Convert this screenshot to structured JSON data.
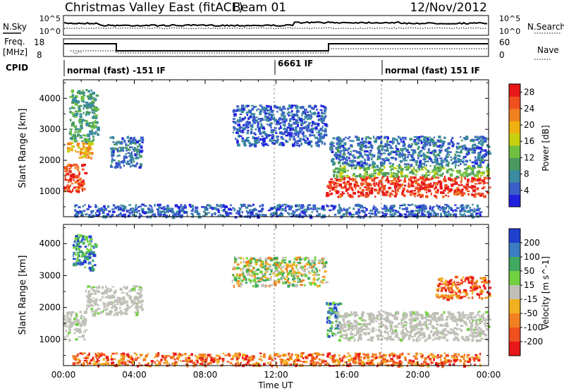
{
  "header": {
    "radar": "Christmas Valley East (fitACF)",
    "beam": "Beam 01",
    "date": "12/Nov/2012"
  },
  "noise_panel": {
    "left_label": "N.Sky",
    "right_label": "N.Search",
    "left_ticks": [
      "10^5",
      "10^0"
    ],
    "right_ticks": [
      "10^5",
      "10^0"
    ]
  },
  "freq_panel": {
    "left_label_1": "Freq.",
    "left_label_2": "[MHz]",
    "right_label": "Nave",
    "left_ticks": [
      "18",
      "8"
    ],
    "right_ticks": [
      "60",
      "0"
    ]
  },
  "cpid_panel": {
    "label": "CPID",
    "segments": [
      "normal (fast) -151 IF",
      "6661 IF",
      "normal (fast) 151 IF"
    ]
  },
  "time_axis": {
    "title": "Time UT",
    "ticks": [
      "00:00",
      "04:00",
      "08:00",
      "12:00",
      "16:00",
      "20:00",
      "00:00"
    ]
  },
  "chart_data": [
    {
      "type": "heatmap",
      "title": "Power",
      "xlabel": "Time UT",
      "ylabel": "Slant Range [km]",
      "x_ticks": [
        "00:00",
        "04:00",
        "08:00",
        "12:00",
        "16:00",
        "20:00",
        "00:00"
      ],
      "y_ticks": [
        1000,
        2000,
        3000,
        4000
      ],
      "xlim_hours": [
        0,
        24
      ],
      "ylim_km": [
        180,
        4600
      ],
      "colorbar_label": "Power [dB]",
      "colorbar_ticks": [
        4,
        8,
        12,
        16,
        20,
        24,
        28
      ],
      "colorbar_range": [
        0,
        30
      ],
      "colorbar_colors": [
        "#2020e0",
        "#3a5ec8",
        "#3a8aa0",
        "#4a9a60",
        "#70c040",
        "#c8d010",
        "#f0b010",
        "#f08020",
        "#f05020",
        "#e81818"
      ],
      "regions": [
        {
          "t0": 0.0,
          "t1": 1.2,
          "r0": 1000,
          "r1": 1900,
          "level": 26
        },
        {
          "t0": 0.2,
          "t1": 1.6,
          "r0": 2100,
          "r1": 2600,
          "level": 20
        },
        {
          "t0": 0.3,
          "t1": 1.9,
          "r0": 2600,
          "r1": 4300,
          "level": 10
        },
        {
          "t0": 2.6,
          "t1": 4.4,
          "r0": 1800,
          "r1": 2800,
          "level": 6
        },
        {
          "t0": 9.5,
          "t1": 14.8,
          "r0": 2500,
          "r1": 3800,
          "level": 5
        },
        {
          "t0": 14.8,
          "t1": 24.0,
          "r0": 850,
          "r1": 1500,
          "level": 27
        },
        {
          "t0": 15.2,
          "t1": 24.0,
          "r0": 1500,
          "r1": 1850,
          "level": 13
        },
        {
          "t0": 15.0,
          "t1": 24.0,
          "r0": 1850,
          "r1": 2800,
          "level": 6
        },
        {
          "t0": 0.5,
          "t1": 23.5,
          "r0": 200,
          "r1": 600,
          "level": 5
        }
      ]
    },
    {
      "type": "heatmap",
      "title": "Velocity",
      "xlabel": "Time UT",
      "ylabel": "Slant Range [km]",
      "x_ticks": [
        "00:00",
        "04:00",
        "08:00",
        "12:00",
        "16:00",
        "20:00",
        "00:00"
      ],
      "y_ticks": [
        1000,
        2000,
        3000,
        4000
      ],
      "xlim_hours": [
        0,
        24
      ],
      "ylim_km": [
        180,
        4600
      ],
      "colorbar_label": "Velocity [m s^-1]",
      "colorbar_ticks": [
        "200",
        "100",
        "50",
        "15",
        "-15",
        "-50",
        "-100",
        "-200"
      ],
      "colorbar_colors": [
        "#2040d0",
        "#3c7cc0",
        "#40a860",
        "#70d040",
        "#c0c0b8",
        "#f0b020",
        "#f08020",
        "#f05020",
        "#e81818"
      ],
      "ground_scatter_color": "#c0c0b8",
      "regions": [
        {
          "t0": 0.0,
          "t1": 1.2,
          "r0": 1000,
          "r1": 1900,
          "class": "ground"
        },
        {
          "t0": 0.5,
          "t1": 1.8,
          "r0": 3200,
          "r1": 4300,
          "class": "positive"
        },
        {
          "t0": 1.2,
          "t1": 4.4,
          "r0": 1800,
          "r1": 2700,
          "class": "ground"
        },
        {
          "t0": 9.5,
          "t1": 14.8,
          "r0": 2700,
          "r1": 3600,
          "class": "mixed"
        },
        {
          "t0": 14.8,
          "t1": 15.6,
          "r0": 1100,
          "r1": 2200,
          "class": "positive"
        },
        {
          "t0": 15.3,
          "t1": 24.0,
          "r0": 1000,
          "r1": 1900,
          "class": "ground"
        },
        {
          "t0": 21.0,
          "t1": 24.0,
          "r0": 2300,
          "r1": 3000,
          "class": "negative"
        },
        {
          "t0": 0.5,
          "t1": 23.5,
          "r0": 200,
          "r1": 600,
          "class": "negative"
        }
      ]
    }
  ]
}
